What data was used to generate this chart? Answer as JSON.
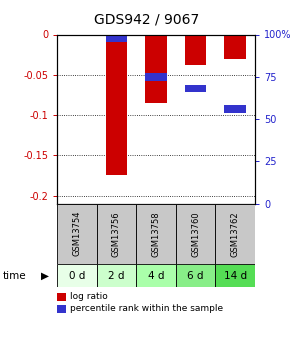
{
  "title": "GDS942 / 9067",
  "categories": [
    "GSM13754",
    "GSM13756",
    "GSM13758",
    "GSM13760",
    "GSM13762"
  ],
  "time_labels": [
    "0 d",
    "2 d",
    "4 d",
    "6 d",
    "14 d"
  ],
  "log_ratio": [
    0.0,
    -0.175,
    -0.085,
    -0.038,
    -0.03
  ],
  "percentile_positions": [
    0,
    2,
    25,
    32,
    44
  ],
  "bar_width": 0.55,
  "ylim_left": [
    -0.21,
    0.0
  ],
  "ylim_right": [
    0,
    100
  ],
  "yticks_left": [
    0.0,
    -0.05,
    -0.1,
    -0.15,
    -0.2
  ],
  "ytick_labels_left": [
    "0",
    "-0.05",
    "-0.1",
    "-0.15",
    "-0.2"
  ],
  "yticks_right": [
    0,
    25,
    50,
    75,
    100
  ],
  "ytick_labels_right": [
    "0",
    "25",
    "50",
    "75",
    "100%"
  ],
  "bar_color_red": "#cc0000",
  "bar_color_blue": "#3333cc",
  "bg_gsm": "#c8c8c8",
  "time_colors": [
    "#e8ffe8",
    "#ccffcc",
    "#aaffaa",
    "#88ee88",
    "#55dd55"
  ],
  "legend_red_label": "log ratio",
  "legend_blue_label": "percentile rank within the sample",
  "left_label_color": "#cc0000",
  "right_label_color": "#2222cc",
  "title_fontsize": 10,
  "tick_fontsize": 7,
  "gsm_fontsize": 6,
  "time_fontsize": 7.5,
  "blue_band_pct": 4.5
}
